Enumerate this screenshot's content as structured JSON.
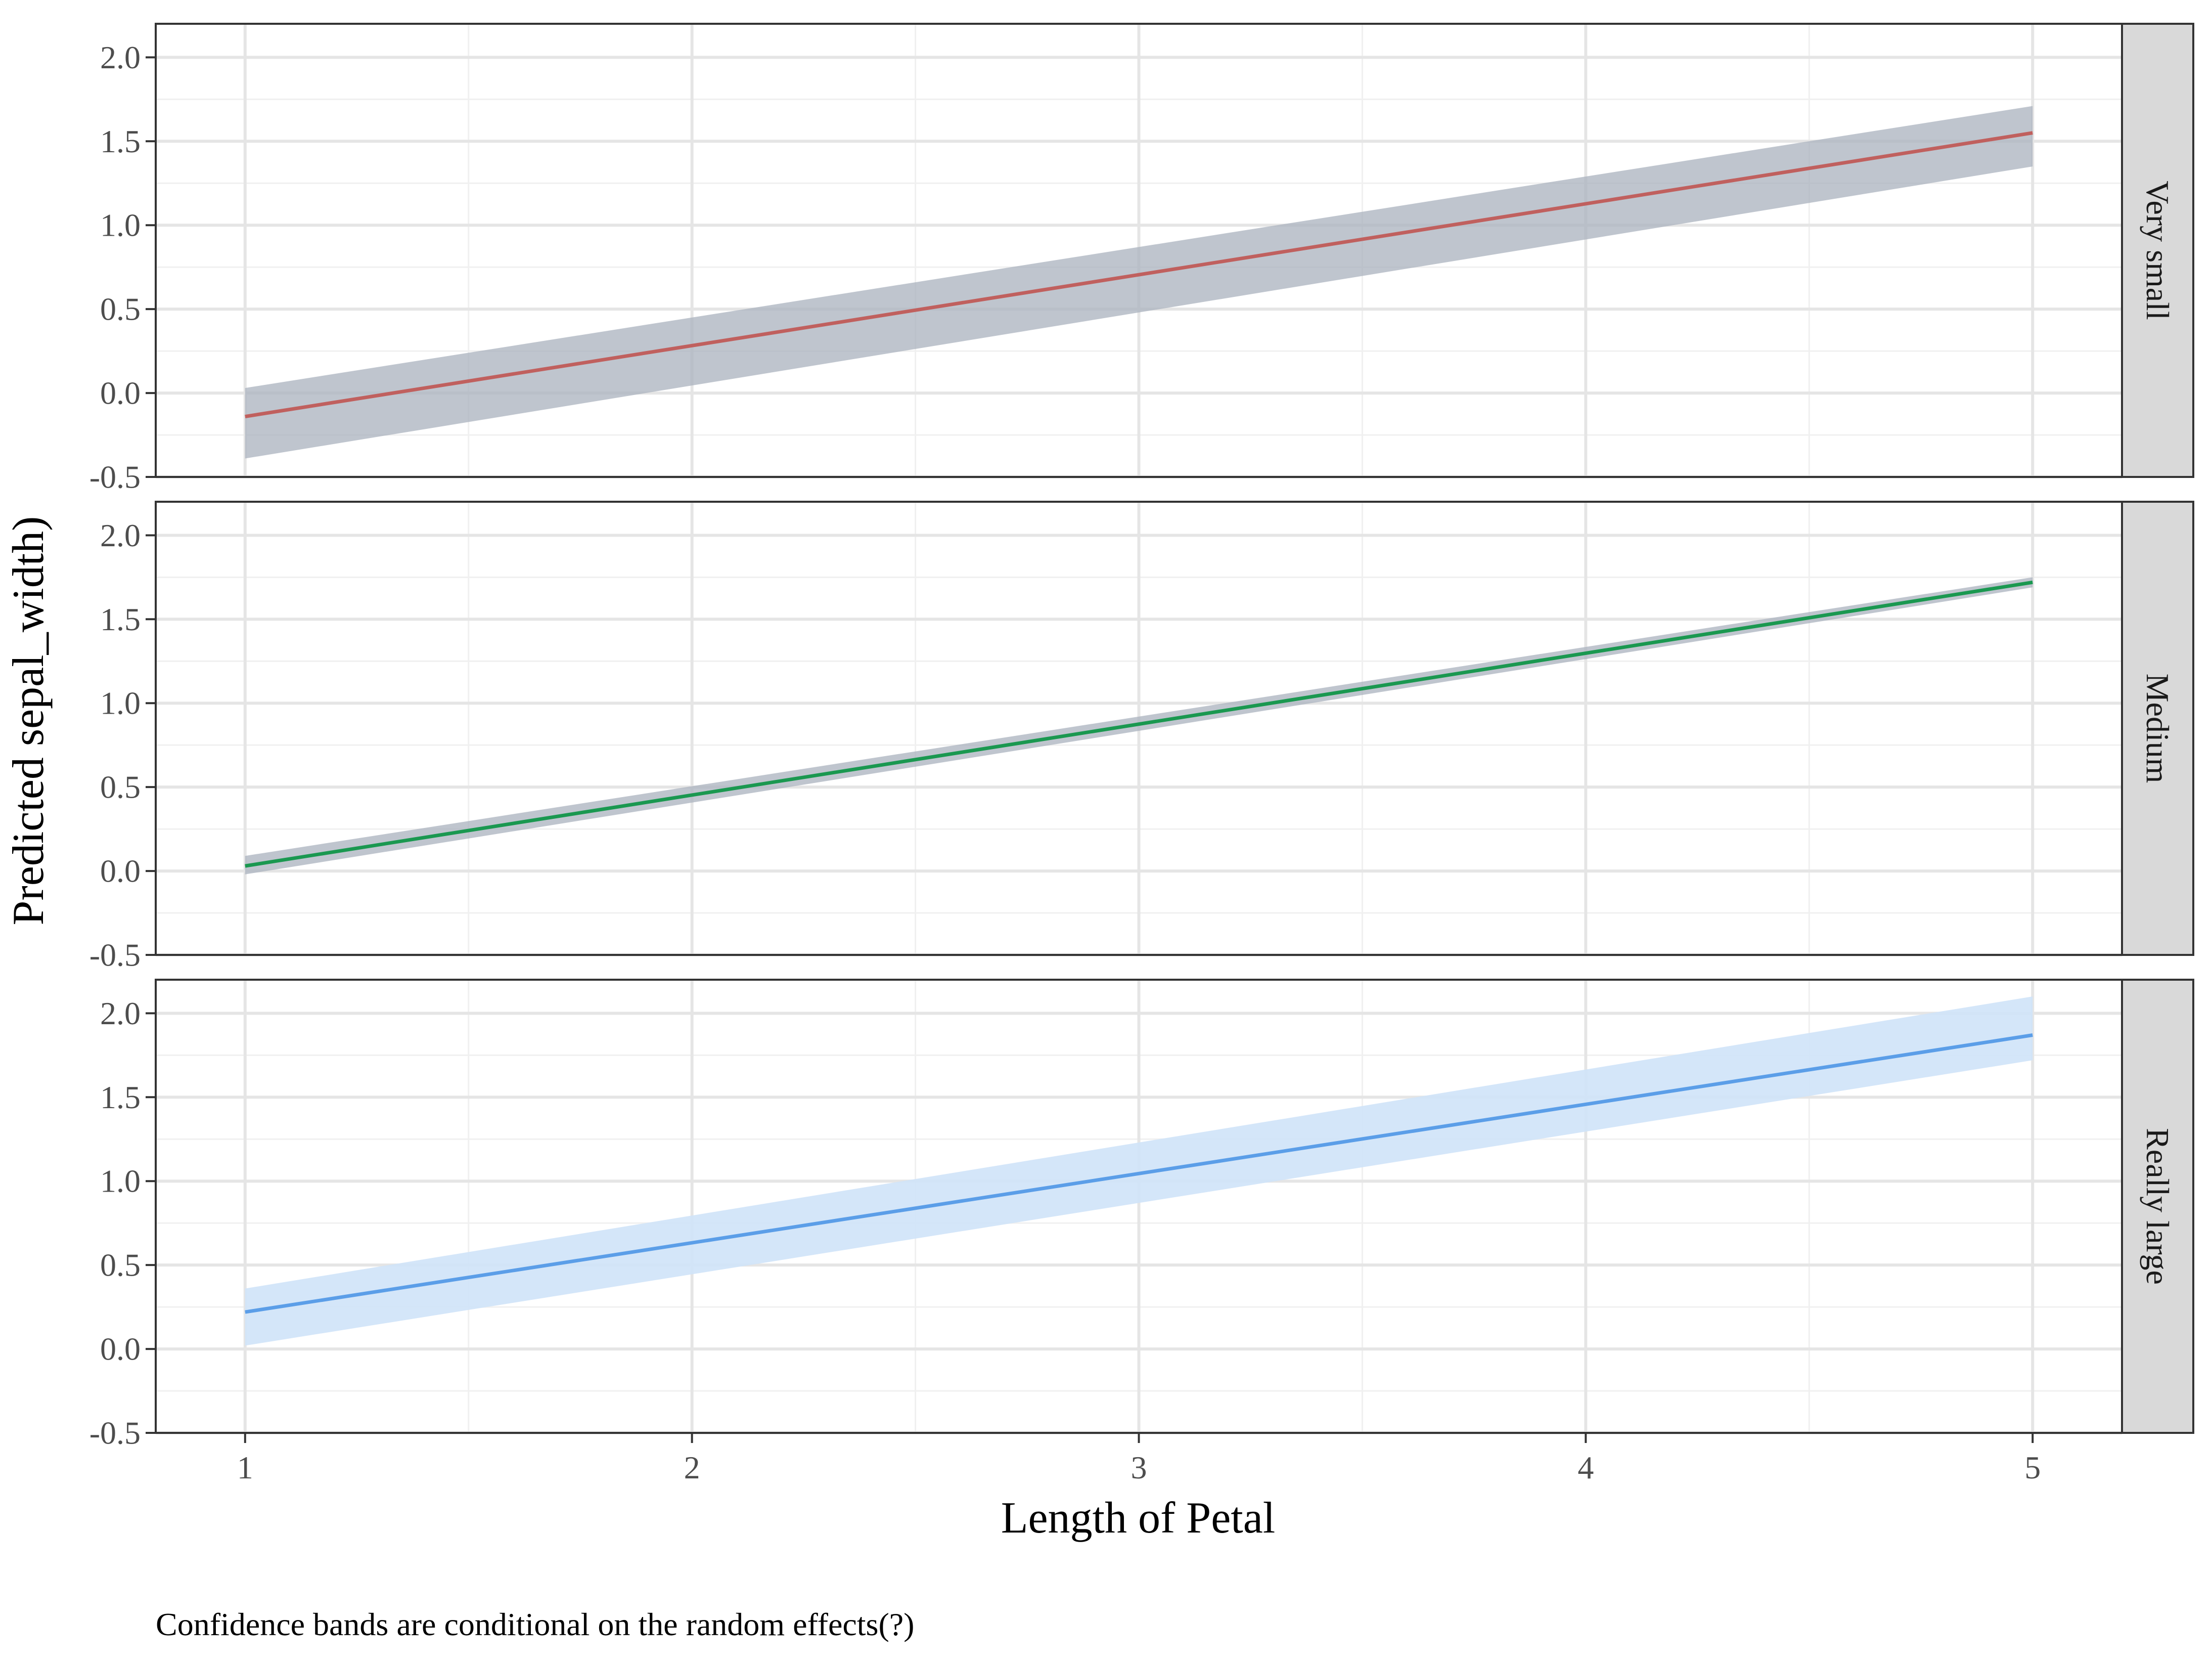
{
  "chart_data": {
    "type": "line",
    "xlabel": "Length of Petal",
    "ylabel": "Predicted sepal_width)",
    "caption": "Confidence bands are conditional on the random effects(?)",
    "xlim": [
      0.8,
      5.2
    ],
    "ylim": [
      -0.5,
      2.2
    ],
    "xticks": [
      1,
      2,
      3,
      4,
      5
    ],
    "yticks": [
      -0.5,
      0.0,
      0.5,
      1.0,
      1.5,
      2.0
    ],
    "ytick_labels": [
      "-0.5",
      "0.0",
      "0.5",
      "1.0",
      "1.5",
      "2.0"
    ],
    "grid": true,
    "band_color": "#aab2be",
    "panels": [
      {
        "strip_label": "Very small",
        "line_color": "#c0605e",
        "band_color": "#aab2be",
        "x": [
          1,
          5
        ],
        "y": [
          -0.14,
          1.55
        ],
        "lower": [
          -0.39,
          1.35
        ],
        "upper": [
          0.03,
          1.71
        ]
      },
      {
        "strip_label": "Medium",
        "line_color": "#1a9850",
        "band_color": "#aab2be",
        "x": [
          1,
          5
        ],
        "y": [
          0.03,
          1.72
        ],
        "lower": [
          -0.02,
          1.69
        ],
        "upper": [
          0.09,
          1.75
        ]
      },
      {
        "strip_label": "Really large",
        "line_color": "#5b9ee8",
        "band_color": "#cfe3f8",
        "x": [
          1,
          5
        ],
        "y": [
          0.22,
          1.87
        ],
        "lower": [
          0.02,
          1.72
        ],
        "upper": [
          0.36,
          2.1
        ]
      }
    ]
  }
}
